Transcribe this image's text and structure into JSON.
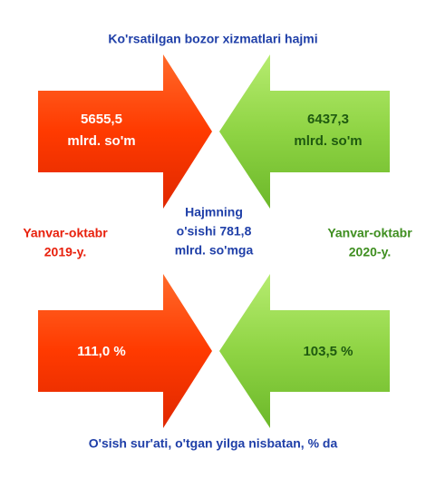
{
  "title": "Ko'rsatilgan bozor xizmatlari hajmi",
  "volume": {
    "left": [
      "5655,5",
      "mlrd.  so'm"
    ],
    "right": [
      "6437,3",
      "mlrd.  so'm"
    ]
  },
  "periods": {
    "left": [
      "Yanvar-oktabr",
      "2019-y."
    ],
    "right": [
      "Yanvar-oktabr",
      "2020-y."
    ]
  },
  "growth": [
    "Hajmning",
    "o'sishi 781,8",
    "mlrd.  so'mga"
  ],
  "rate": {
    "left": "111,0 %",
    "right": "103,5 %"
  },
  "caption": "O'sish sur'ati, o'tgan yilga nisbatan, % da"
}
